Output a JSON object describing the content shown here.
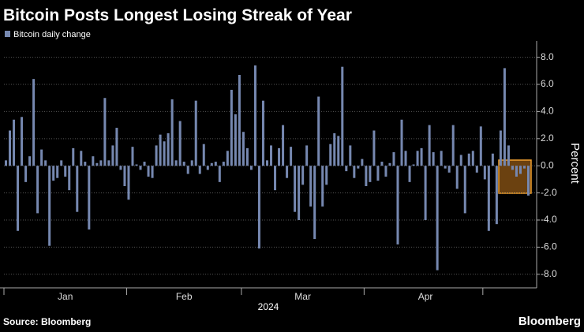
{
  "chart_data": {
    "type": "bar",
    "title": "Bitcoin Posts Longest Losing Streak of Year",
    "y_label": "Percent",
    "x_label": "2024",
    "source": "Source: Bloomberg",
    "brand": "Bloomberg",
    "categories": [
      null,
      null,
      null,
      null,
      null,
      null,
      null,
      null,
      null,
      null,
      null,
      null,
      null,
      null,
      null,
      "Jan",
      null,
      null,
      null,
      null,
      null,
      null,
      null,
      null,
      null,
      null,
      null,
      null,
      null,
      null,
      null,
      null,
      null,
      null,
      null,
      null,
      null,
      null,
      null,
      null,
      null,
      null,
      null,
      null,
      null,
      "Feb",
      null,
      null,
      null,
      null,
      null,
      null,
      null,
      null,
      null,
      null,
      null,
      null,
      null,
      null,
      null,
      null,
      null,
      null,
      null,
      null,
      null,
      null,
      null,
      null,
      null,
      null,
      null,
      null,
      null,
      "Mar",
      null,
      null,
      null,
      null,
      null,
      null,
      null,
      null,
      null,
      null,
      null,
      null,
      null,
      null,
      null,
      null,
      null,
      null,
      null,
      null,
      null,
      null,
      null,
      null,
      null,
      null,
      null,
      null,
      null,
      null,
      "Apr",
      null,
      null,
      null,
      null,
      null,
      null,
      null,
      null,
      null,
      null,
      null,
      null,
      null,
      null,
      null,
      null,
      null,
      null,
      null,
      null,
      null,
      null,
      null,
      null,
      null,
      null
    ],
    "xticks": [
      0,
      31,
      60,
      91,
      121
    ],
    "series": [
      {
        "name": "Bitcoin daily change",
        "color": "#7688b0",
        "values": [
          0.4,
          2.6,
          3.4,
          -4.8,
          3.6,
          -1.2,
          0.7,
          6.4,
          -3.5,
          1.2,
          0.4,
          -5.9,
          -1.1,
          -0.9,
          0.4,
          -0.8,
          -1.8,
          1.3,
          -3.4,
          1.1,
          0.3,
          -4.7,
          0.7,
          0.2,
          0.4,
          5.0,
          0.4,
          1.5,
          2.8,
          -0.3,
          -1.5,
          -2.5,
          1.4,
          0.1,
          -0.3,
          0.3,
          -0.8,
          -0.9,
          1.5,
          2.3,
          1.8,
          2.4,
          4.9,
          0.4,
          3.3,
          0.3,
          -0.6,
          0.4,
          4.8,
          -0.6,
          1.6,
          -0.3,
          0.2,
          0.3,
          -1.2,
          0.3,
          1.1,
          5.6,
          3.8,
          6.7,
          2.5,
          1.3,
          -0.3,
          7.4,
          -6.1,
          4.8,
          0.4,
          1.5,
          -1.8,
          1.3,
          3.0,
          -0.9,
          1.4,
          -3.4,
          -4.0,
          -1.4,
          1.5,
          -3.0,
          -5.4,
          5.1,
          -3.0,
          -1.4,
          1.6,
          2.4,
          2.2,
          7.3,
          -0.4,
          1.5,
          -0.9,
          -0.2,
          0.5,
          -1.5,
          -1.2,
          2.6,
          -1.1,
          0.3,
          -0.8,
          0.2,
          1.0,
          -5.8,
          3.4,
          1.1,
          -1.2,
          0.1,
          1.1,
          1.3,
          -4.0,
          3.0,
          1.0,
          -7.7,
          1.1,
          -0.2,
          -0.5,
          3.0,
          -1.7,
          0.8,
          -3.5,
          0.9,
          1.1,
          -0.5,
          2.9,
          -1.0,
          -4.8,
          0.9,
          -4.3,
          2.6,
          7.2,
          1.5,
          -0.3,
          -0.8,
          -0.6,
          -0.2,
          -2.2
        ]
      }
    ],
    "ylim": [
      -9.0,
      9.2
    ],
    "yticks": [
      {
        "value": -8,
        "label": "-8.0"
      },
      {
        "value": -6,
        "label": "-6.0"
      },
      {
        "value": -4,
        "label": "-4.0"
      },
      {
        "value": -2,
        "label": "-2.0"
      },
      {
        "value": 0,
        "label": "0.0"
      },
      {
        "value": 2,
        "label": "2.0"
      },
      {
        "value": 4,
        "label": "4.0"
      },
      {
        "value": 6,
        "label": "6.0"
      },
      {
        "value": 8,
        "label": "8.0"
      }
    ],
    "grid": true
  }
}
